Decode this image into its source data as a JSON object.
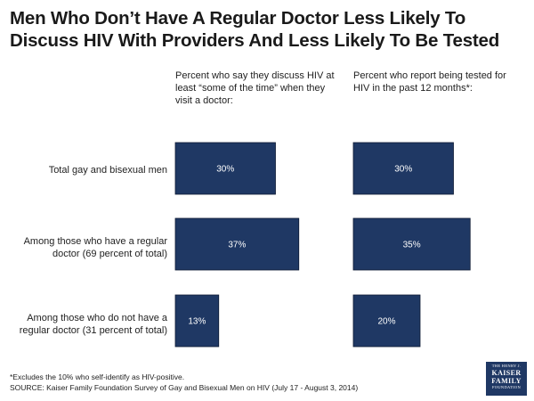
{
  "title": "Men Who Don’t Have A Regular Doctor Less Likely To Discuss HIV With Providers And Less Likely To Be Tested",
  "colors": {
    "bar": "#1f3864",
    "bar_text": "#ffffff"
  },
  "chart_data": {
    "type": "bar",
    "orientation": "horizontal",
    "categories": [
      "Total gay and bisexual men",
      "Among those who have a regular doctor (69 percent of total)",
      "Among those who do not have a regular doctor (31 percent of total)"
    ],
    "panels": [
      {
        "header": "Percent who say they discuss HIV at least “some of the time” when they visit a doctor:",
        "values": [
          30,
          37,
          13
        ],
        "labels": [
          "30%",
          "37%",
          "13%"
        ]
      },
      {
        "header": "Percent who report being tested for HIV in the past 12 months*:",
        "values": [
          30,
          35,
          20
        ],
        "labels": [
          "30%",
          "35%",
          "20%"
        ]
      }
    ],
    "unit": "%",
    "grid": false,
    "legend": "none"
  },
  "footnote": "*Excludes the 10% who self-identify as HIV-positive.",
  "source": "SOURCE: Kaiser Family Foundation Survey of Gay and Bisexual Men on HIV (July 17 - August 3, 2014)",
  "logo": {
    "line1": "THE HENRY J.",
    "line2": "KAISER",
    "line3": "FAMILY",
    "line4": "FOUNDATION"
  }
}
